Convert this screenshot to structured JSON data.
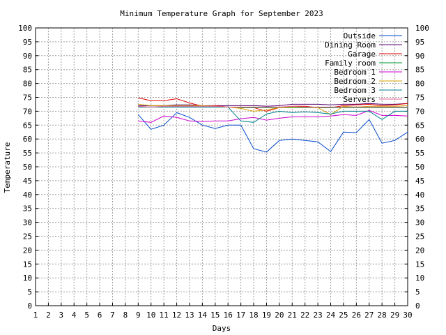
{
  "chart_data": {
    "type": "line",
    "title": "Minimum Temperature Graph for September 2023",
    "xlabel": "Days",
    "ylabel": "Temperature",
    "xlim": [
      1,
      30
    ],
    "ylim": [
      0,
      100
    ],
    "x_ticks": [
      1,
      2,
      3,
      4,
      5,
      6,
      7,
      8,
      9,
      10,
      11,
      12,
      13,
      14,
      15,
      16,
      17,
      18,
      19,
      20,
      21,
      22,
      23,
      24,
      25,
      26,
      27,
      28,
      29,
      30
    ],
    "y_ticks": [
      0,
      5,
      10,
      15,
      20,
      25,
      30,
      35,
      40,
      45,
      50,
      55,
      60,
      65,
      70,
      75,
      80,
      85,
      90,
      95,
      100
    ],
    "grid": true,
    "legend_position": "top-right",
    "x": [
      9,
      10,
      11,
      12,
      13,
      14,
      15,
      16,
      17,
      18,
      19,
      20,
      21,
      22,
      23,
      24,
      25,
      26,
      27,
      28,
      29,
      30
    ],
    "series": [
      {
        "name": "Outside",
        "color": "#0047cc",
        "values": [
          68.8,
          63.5,
          65.0,
          69.5,
          67.8,
          65.0,
          63.8,
          65.0,
          65.0,
          56.5,
          55.3,
          59.5,
          60.0,
          59.5,
          59.0,
          55.5,
          62.5,
          62.3,
          67.0,
          58.5,
          59.5,
          62.5
        ]
      },
      {
        "name": "Dining Room",
        "color": "#54006b",
        "values": [
          72.0,
          72.0,
          72.0,
          72.3,
          72.3,
          72.0,
          72.0,
          72.0,
          72.0,
          72.0,
          71.8,
          72.0,
          72.5,
          72.5,
          72.5,
          72.3,
          72.5,
          72.5,
          72.8,
          72.5,
          72.5,
          72.8
        ]
      },
      {
        "name": "Garage",
        "color": "#e00000",
        "values": [
          74.8,
          73.8,
          73.8,
          74.5,
          73.0,
          71.8,
          72.0,
          71.5,
          71.3,
          71.3,
          70.0,
          71.3,
          71.8,
          71.8,
          71.3,
          71.3,
          72.0,
          72.3,
          72.5,
          72.0,
          72.3,
          72.8
        ]
      },
      {
        "name": "Family room",
        "color": "#009933",
        "values": [
          71.5,
          71.5,
          71.5,
          71.5,
          71.5,
          71.5,
          71.5,
          71.5,
          71.3,
          71.3,
          71.3,
          71.3,
          71.3,
          71.3,
          71.3,
          71.3,
          71.3,
          71.3,
          71.3,
          71.3,
          71.3,
          71.3
        ]
      },
      {
        "name": "Bedroom 1",
        "color": "#cc00cc",
        "values": [
          66.5,
          66.0,
          68.3,
          67.8,
          66.5,
          66.3,
          66.5,
          66.5,
          67.3,
          67.8,
          66.8,
          67.5,
          68.0,
          68.0,
          68.0,
          68.3,
          68.8,
          68.5,
          70.3,
          68.5,
          68.5,
          68.3
        ]
      },
      {
        "name": "Bedroom 2",
        "color": "#d4a000",
        "values": [
          72.5,
          72.0,
          72.0,
          72.0,
          72.0,
          72.0,
          71.8,
          71.5,
          71.0,
          70.0,
          70.5,
          71.3,
          71.5,
          71.5,
          71.3,
          68.8,
          71.8,
          71.5,
          71.8,
          71.8,
          71.8,
          72.0
        ]
      },
      {
        "name": "Bedroom 3",
        "color": "#00808f",
        "values": [
          71.5,
          71.5,
          71.5,
          71.5,
          71.5,
          71.5,
          71.5,
          71.5,
          66.5,
          66.0,
          69.0,
          70.0,
          69.5,
          69.8,
          69.5,
          69.0,
          70.0,
          70.0,
          70.0,
          67.0,
          70.0,
          70.0
        ]
      },
      {
        "name": "Servers",
        "color": "#e06090",
        "values": [
          71.8,
          71.5,
          71.8,
          71.8,
          71.8,
          71.8,
          71.8,
          71.5,
          71.5,
          71.5,
          71.5,
          71.5,
          71.8,
          71.5,
          71.5,
          71.5,
          71.5,
          71.5,
          71.5,
          71.5,
          71.5,
          71.5
        ]
      }
    ]
  }
}
